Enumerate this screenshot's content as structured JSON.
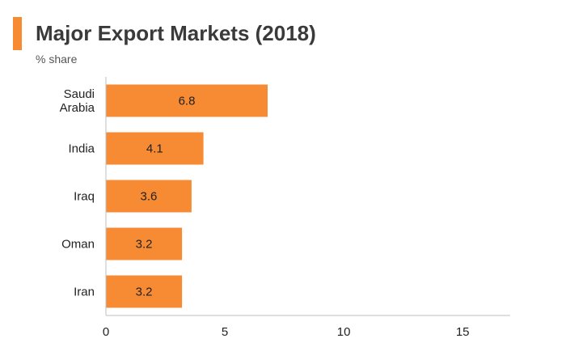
{
  "header": {
    "title": "Major Export Markets (2018)",
    "subtitle": "% share",
    "accent_color": "#f68b33"
  },
  "chart_data": {
    "type": "bar",
    "orientation": "horizontal",
    "title": "Major Export Markets (2018)",
    "subtitle": "% share",
    "categories": [
      [
        "Saudi",
        "Arabia"
      ],
      [
        "India"
      ],
      [
        "Iraq"
      ],
      [
        "Oman"
      ],
      [
        "Iran"
      ]
    ],
    "values": [
      6.8,
      4.1,
      3.6,
      3.2,
      3.2
    ],
    "data_labels": [
      "6.8",
      "4.1",
      "3.6",
      "3.2",
      "3.2"
    ],
    "xlim": [
      0,
      17
    ],
    "xticks": [
      0,
      5,
      10,
      15
    ],
    "xtick_labels": [
      "0",
      "5",
      "10",
      "15"
    ],
    "grid": false,
    "legend": "none",
    "bar_color": "#f68b33",
    "axis_color": "#bfbfbf"
  }
}
